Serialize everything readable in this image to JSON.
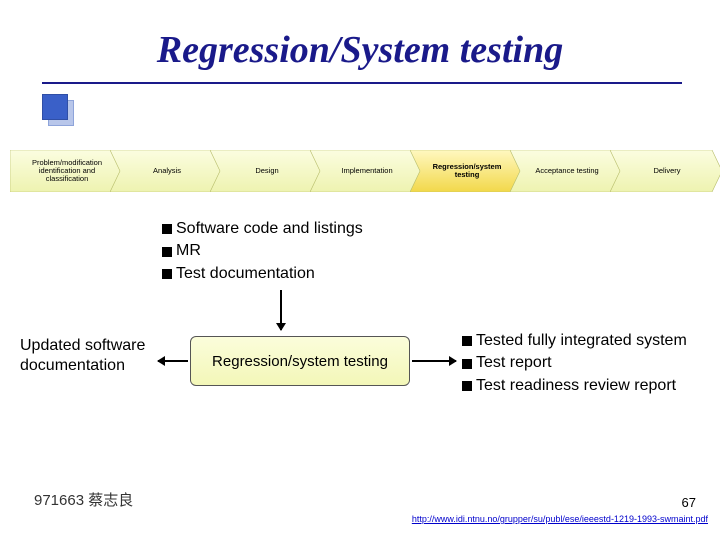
{
  "title": "Regression/System testing",
  "title_color": "#1a1a8a",
  "flow": {
    "steps": [
      {
        "label": "Problem/modification identification and classification",
        "highlight": false
      },
      {
        "label": "Analysis",
        "highlight": false
      },
      {
        "label": "Design",
        "highlight": false
      },
      {
        "label": "Implementation",
        "highlight": false
      },
      {
        "label": "Regression/system testing",
        "highlight": true
      },
      {
        "label": "Acceptance testing",
        "highlight": false
      },
      {
        "label": "Delivery",
        "highlight": false
      }
    ],
    "fill_normal_top": "#fbfde0",
    "fill_normal_bot": "#eef3b0",
    "fill_highlight_top": "#fff8c0",
    "fill_highlight_bot": "#f2d84a",
    "stroke": "#b7bd6b"
  },
  "inputs": [
    "Software code and listings",
    "MR",
    "Test documentation"
  ],
  "left_label": "Updated software documentation",
  "center_box": "Regression/system testing",
  "outputs": [
    "Tested fully integrated system",
    "Test report",
    "Test readiness review report"
  ],
  "footer": {
    "author": "971663 蔡志良",
    "link": "http://www.idi.ntnu.no/grupper/su/publ/ese/ieeestd-1219-1993-swmaint.pdf",
    "slide": "67"
  },
  "colors": {
    "background": "#ffffff",
    "text": "#000000",
    "link": "#0000cc"
  }
}
